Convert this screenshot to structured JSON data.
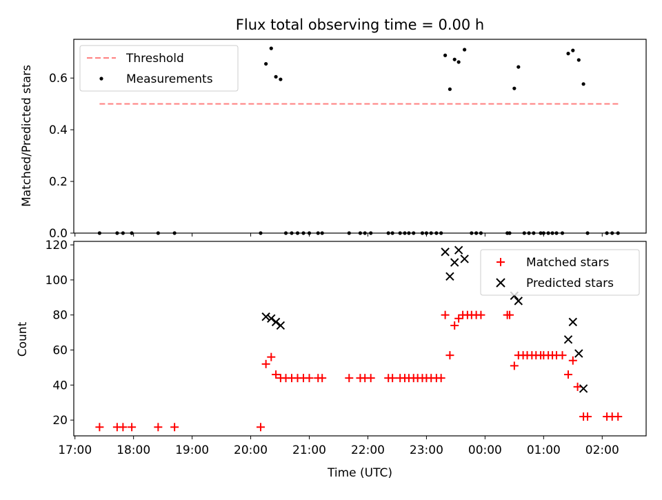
{
  "chart_data": [
    {
      "type": "scatter",
      "title": "Flux total observing time = 0.00 h",
      "xlabel": "",
      "ylabel": "Matched/Predicted stars",
      "xlim_hours": [
        16.98,
        26.75
      ],
      "ylim": [
        0,
        0.75
      ],
      "yticks": [
        "0.0",
        "0.2",
        "0.4",
        "0.6"
      ],
      "ytick_values": [
        0.0,
        0.2,
        0.4,
        0.6
      ],
      "grid": false,
      "legend_position": "top-left",
      "threshold": {
        "name": "Threshold",
        "y": 0.5,
        "x_range": [
          17.42,
          26.28
        ],
        "color": "#ff7f7f",
        "style": "dashed"
      },
      "series": [
        {
          "name": "Measurements",
          "color": "#000000",
          "marker": "dot",
          "points": [
            [
              17.42,
              0
            ],
            [
              17.72,
              0
            ],
            [
              17.82,
              0
            ],
            [
              17.97,
              0
            ],
            [
              18.42,
              0
            ],
            [
              18.7,
              0
            ],
            [
              20.17,
              0
            ],
            [
              20.26,
              0.655
            ],
            [
              20.35,
              0.715
            ],
            [
              20.43,
              0.605
            ],
            [
              20.51,
              0.595
            ],
            [
              20.6,
              0
            ],
            [
              20.7,
              0
            ],
            [
              20.8,
              0
            ],
            [
              20.9,
              0
            ],
            [
              21.0,
              0
            ],
            [
              21.15,
              0
            ],
            [
              21.22,
              0
            ],
            [
              21.68,
              0
            ],
            [
              21.87,
              0
            ],
            [
              21.95,
              0
            ],
            [
              22.05,
              0
            ],
            [
              22.35,
              0
            ],
            [
              22.42,
              0
            ],
            [
              22.55,
              0
            ],
            [
              22.63,
              0
            ],
            [
              22.7,
              0
            ],
            [
              22.78,
              0
            ],
            [
              22.93,
              0
            ],
            [
              23.0,
              0
            ],
            [
              23.08,
              0
            ],
            [
              23.17,
              0
            ],
            [
              23.25,
              0
            ],
            [
              23.32,
              0.688
            ],
            [
              23.4,
              0.557
            ],
            [
              23.48,
              0.672
            ],
            [
              23.55,
              0.662
            ],
            [
              23.65,
              0.71
            ],
            [
              23.77,
              0
            ],
            [
              23.85,
              0
            ],
            [
              23.93,
              0
            ],
            [
              24.38,
              0
            ],
            [
              24.42,
              0
            ],
            [
              24.5,
              0.56
            ],
            [
              24.57,
              0.643
            ],
            [
              24.67,
              0
            ],
            [
              24.75,
              0
            ],
            [
              24.83,
              0
            ],
            [
              24.95,
              0
            ],
            [
              25.0,
              0
            ],
            [
              25.08,
              0
            ],
            [
              25.15,
              0
            ],
            [
              25.22,
              0
            ],
            [
              25.32,
              0
            ],
            [
              25.42,
              0.695
            ],
            [
              25.5,
              0.707
            ],
            [
              25.6,
              0.67
            ],
            [
              25.68,
              0.577
            ],
            [
              25.75,
              0
            ],
            [
              26.08,
              0
            ],
            [
              26.17,
              0
            ],
            [
              26.27,
              0
            ]
          ]
        }
      ]
    },
    {
      "type": "scatter",
      "title": "",
      "xlabel": "Time (UTC)",
      "ylabel": "Count",
      "xlim_hours": [
        16.98,
        26.75
      ],
      "ylim": [
        11,
        122
      ],
      "xticks": [
        "17:00",
        "18:00",
        "19:00",
        "20:00",
        "21:00",
        "22:00",
        "23:00",
        "00:00",
        "01:00",
        "02:00"
      ],
      "xtick_values": [
        17,
        18,
        19,
        20,
        21,
        22,
        23,
        24,
        25,
        26
      ],
      "yticks": [
        "20",
        "40",
        "60",
        "80",
        "100",
        "120"
      ],
      "ytick_values": [
        20,
        40,
        60,
        80,
        100,
        120
      ],
      "grid": false,
      "legend_position": "top-right",
      "series": [
        {
          "name": "Matched stars",
          "color": "#ff0000",
          "marker": "plus",
          "points": [
            [
              17.42,
              16
            ],
            [
              17.72,
              16
            ],
            [
              17.82,
              16
            ],
            [
              17.97,
              16
            ],
            [
              18.42,
              16
            ],
            [
              18.7,
              16
            ],
            [
              20.17,
              16
            ],
            [
              20.26,
              52
            ],
            [
              20.35,
              56
            ],
            [
              20.43,
              46
            ],
            [
              20.51,
              44
            ],
            [
              20.6,
              44
            ],
            [
              20.7,
              44
            ],
            [
              20.8,
              44
            ],
            [
              20.9,
              44
            ],
            [
              21.0,
              44
            ],
            [
              21.15,
              44
            ],
            [
              21.22,
              44
            ],
            [
              21.68,
              44
            ],
            [
              21.87,
              44
            ],
            [
              21.95,
              44
            ],
            [
              22.05,
              44
            ],
            [
              22.35,
              44
            ],
            [
              22.42,
              44
            ],
            [
              22.55,
              44
            ],
            [
              22.63,
              44
            ],
            [
              22.7,
              44
            ],
            [
              22.78,
              44
            ],
            [
              22.85,
              44
            ],
            [
              22.93,
              44
            ],
            [
              23.0,
              44
            ],
            [
              23.08,
              44
            ],
            [
              23.17,
              44
            ],
            [
              23.25,
              44
            ],
            [
              23.32,
              80
            ],
            [
              23.4,
              57
            ],
            [
              23.48,
              74
            ],
            [
              23.55,
              78
            ],
            [
              23.62,
              80
            ],
            [
              23.7,
              80
            ],
            [
              23.77,
              80
            ],
            [
              23.85,
              80
            ],
            [
              23.93,
              80
            ],
            [
              24.38,
              80
            ],
            [
              24.42,
              80
            ],
            [
              24.5,
              51
            ],
            [
              24.57,
              57
            ],
            [
              24.65,
              57
            ],
            [
              24.72,
              57
            ],
            [
              24.8,
              57
            ],
            [
              24.87,
              57
            ],
            [
              24.95,
              57
            ],
            [
              25.0,
              57
            ],
            [
              25.08,
              57
            ],
            [
              25.15,
              57
            ],
            [
              25.22,
              57
            ],
            [
              25.32,
              57
            ],
            [
              25.42,
              46
            ],
            [
              25.5,
              54
            ],
            [
              25.58,
              39
            ],
            [
              25.68,
              22
            ],
            [
              25.75,
              22
            ],
            [
              26.08,
              22
            ],
            [
              26.17,
              22
            ],
            [
              26.27,
              22
            ]
          ]
        },
        {
          "name": "Predicted stars",
          "color": "#000000",
          "marker": "x",
          "points": [
            [
              20.26,
              79
            ],
            [
              20.35,
              78
            ],
            [
              20.43,
              76
            ],
            [
              20.51,
              74
            ],
            [
              23.32,
              116
            ],
            [
              23.4,
              102
            ],
            [
              23.48,
              110
            ],
            [
              23.55,
              117
            ],
            [
              23.65,
              112
            ],
            [
              24.5,
              91
            ],
            [
              24.57,
              88
            ],
            [
              25.42,
              66
            ],
            [
              25.5,
              76
            ],
            [
              25.6,
              58
            ],
            [
              25.68,
              38
            ]
          ]
        }
      ]
    }
  ]
}
